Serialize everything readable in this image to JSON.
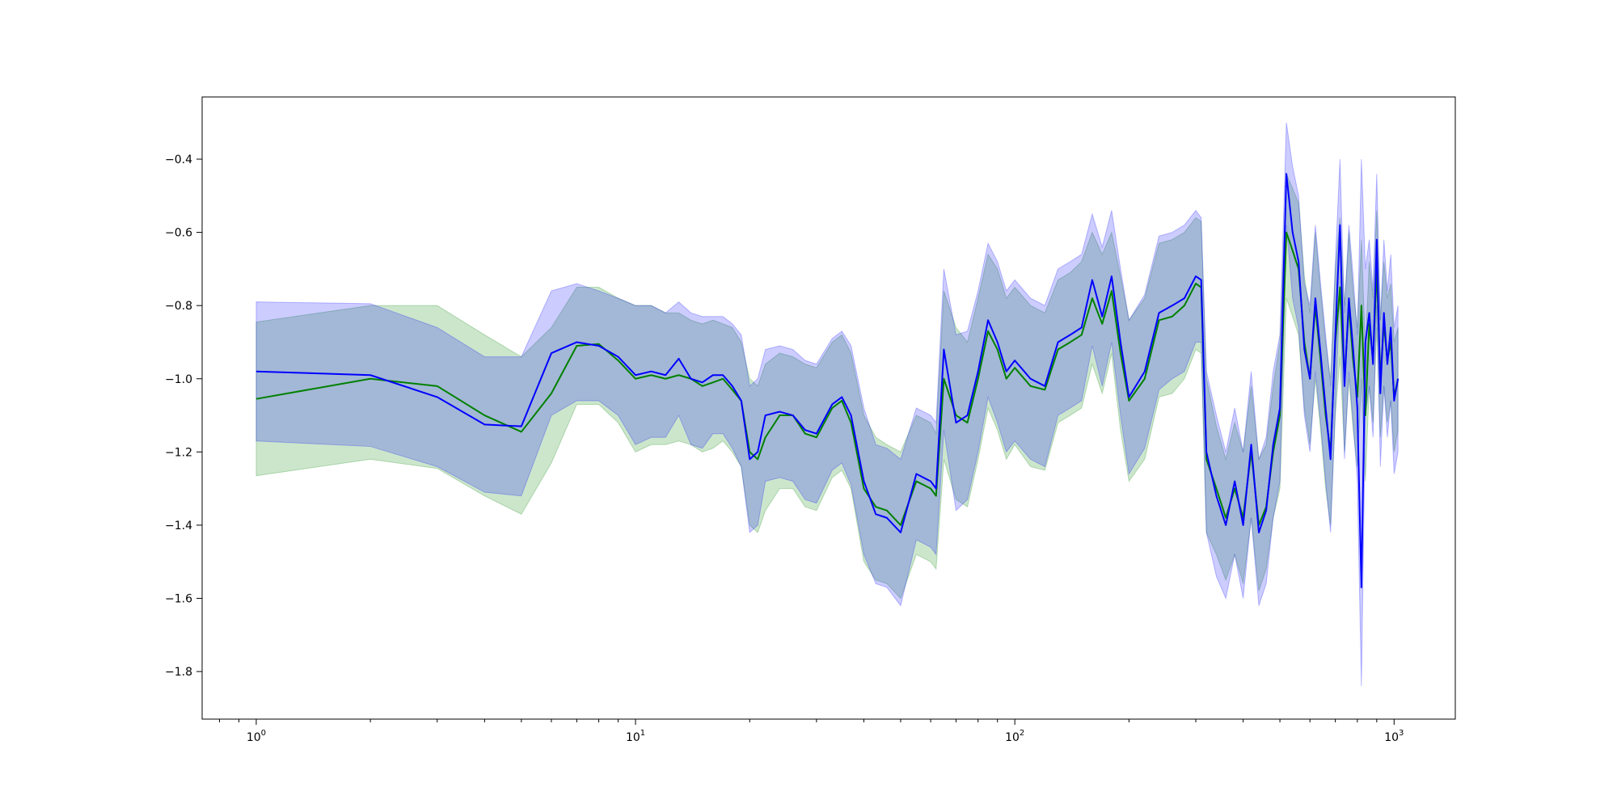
{
  "chart_data": {
    "type": "line",
    "xscale": "log",
    "xlim": [
      0.72,
      1450
    ],
    "ylim": [
      -1.93,
      -0.23
    ],
    "grid": false,
    "legend": "none",
    "colors": {
      "green_line": "#008000",
      "green_band": "#008000",
      "blue_line": "#0000ff",
      "blue_band": "#0000ff",
      "axes": "#000000"
    },
    "x_ticks": [
      {
        "value": 1,
        "base": "10",
        "exp": "0"
      },
      {
        "value": 10,
        "base": "10",
        "exp": "1"
      },
      {
        "value": 100,
        "base": "10",
        "exp": "2"
      },
      {
        "value": 1000,
        "base": "10",
        "exp": "3"
      }
    ],
    "y_ticks": [
      {
        "value": -0.4,
        "label": "−0.4"
      },
      {
        "value": -0.6,
        "label": "−0.6"
      },
      {
        "value": -0.8,
        "label": "−0.8"
      },
      {
        "value": -1.0,
        "label": "−1.0"
      },
      {
        "value": -1.2,
        "label": "−1.2"
      },
      {
        "value": -1.4,
        "label": "−1.4"
      },
      {
        "value": -1.6,
        "label": "−1.6"
      },
      {
        "value": -1.8,
        "label": "−1.8"
      }
    ],
    "series": [
      {
        "color_key": "green",
        "x": [
          1,
          2,
          3,
          4,
          5,
          6,
          7,
          8,
          9,
          10,
          11,
          12,
          13,
          14,
          15,
          16,
          17,
          18,
          19,
          20,
          21,
          22,
          24,
          26,
          28,
          30,
          33,
          35,
          37,
          40,
          43,
          46,
          50,
          55,
          60,
          62,
          65,
          70,
          75,
          80,
          85,
          90,
          95,
          100,
          110,
          120,
          130,
          140,
          150,
          160,
          170,
          180,
          190,
          200,
          220,
          240,
          260,
          280,
          300,
          310,
          320,
          340,
          360,
          380,
          400,
          420,
          440,
          460,
          480,
          500,
          520,
          540,
          560,
          580,
          600,
          620,
          640,
          660,
          680,
          700,
          720,
          740,
          760,
          780,
          800,
          820,
          840,
          860,
          880,
          900,
          920,
          940,
          960,
          980,
          1000,
          1024
        ],
        "y": [
          -1.055,
          -1.0,
          -1.02,
          -1.1,
          -1.145,
          -1.04,
          -0.91,
          -0.905,
          -0.95,
          -1.0,
          -0.99,
          -1.0,
          -0.99,
          -1.0,
          -1.02,
          -1.01,
          -1.0,
          -1.03,
          -1.06,
          -1.2,
          -1.22,
          -1.16,
          -1.1,
          -1.1,
          -1.15,
          -1.16,
          -1.08,
          -1.06,
          -1.12,
          -1.3,
          -1.35,
          -1.36,
          -1.4,
          -1.28,
          -1.3,
          -1.32,
          -1.0,
          -1.1,
          -1.12,
          -1.0,
          -0.87,
          -0.92,
          -1.0,
          -0.97,
          -1.02,
          -1.03,
          -0.92,
          -0.9,
          -0.88,
          -0.78,
          -0.85,
          -0.76,
          -0.93,
          -1.06,
          -1.0,
          -0.84,
          -0.83,
          -0.8,
          -0.74,
          -0.75,
          -1.22,
          -1.3,
          -1.38,
          -1.3,
          -1.38,
          -1.2,
          -1.4,
          -1.35,
          -1.2,
          -1.1,
          -0.6,
          -0.65,
          -0.7,
          -0.9,
          -1.0,
          -0.8,
          -0.95,
          -1.1,
          -1.2,
          -0.9,
          -0.75,
          -1.0,
          -0.8,
          -0.95,
          -1.05,
          -0.8,
          -1.1,
          -0.85,
          -0.95,
          -0.7,
          -1.0,
          -0.85,
          -0.95,
          -0.9,
          -1.05,
          -1.0
        ],
        "upper": [
          -0.845,
          -0.8,
          -0.8,
          -0.88,
          -0.94,
          -0.86,
          -0.75,
          -0.75,
          -0.78,
          -0.8,
          -0.8,
          -0.82,
          -0.82,
          -0.84,
          -0.85,
          -0.84,
          -0.85,
          -0.86,
          -0.9,
          -1.0,
          -1.02,
          -0.96,
          -0.93,
          -0.94,
          -0.96,
          -0.97,
          -0.9,
          -0.88,
          -0.93,
          -1.1,
          -1.16,
          -1.18,
          -1.2,
          -1.1,
          -1.12,
          -1.15,
          -0.76,
          -0.86,
          -0.9,
          -0.78,
          -0.66,
          -0.7,
          -0.78,
          -0.75,
          -0.8,
          -0.82,
          -0.73,
          -0.71,
          -0.68,
          -0.6,
          -0.66,
          -0.6,
          -0.72,
          -0.84,
          -0.78,
          -0.63,
          -0.62,
          -0.6,
          -0.56,
          -0.57,
          -1.0,
          -1.13,
          -1.22,
          -1.12,
          -1.2,
          -1.02,
          -1.22,
          -1.18,
          -1.02,
          -0.9,
          -0.44,
          -0.48,
          -0.52,
          -0.72,
          -0.82,
          -0.6,
          -0.76,
          -0.9,
          -1.0,
          -0.7,
          -0.56,
          -0.8,
          -0.6,
          -0.76,
          -0.86,
          -0.62,
          -0.92,
          -0.68,
          -0.78,
          -0.54,
          -0.84,
          -0.68,
          -0.78,
          -0.74,
          -0.9,
          -0.86
        ],
        "lower": [
          -1.265,
          -1.22,
          -1.245,
          -1.32,
          -1.37,
          -1.23,
          -1.07,
          -1.07,
          -1.12,
          -1.2,
          -1.18,
          -1.18,
          -1.17,
          -1.18,
          -1.2,
          -1.19,
          -1.17,
          -1.2,
          -1.24,
          -1.4,
          -1.42,
          -1.36,
          -1.3,
          -1.3,
          -1.35,
          -1.36,
          -1.27,
          -1.25,
          -1.3,
          -1.5,
          -1.55,
          -1.56,
          -1.6,
          -1.48,
          -1.5,
          -1.52,
          -1.22,
          -1.33,
          -1.35,
          -1.22,
          -1.08,
          -1.14,
          -1.22,
          -1.18,
          -1.24,
          -1.25,
          -1.12,
          -1.1,
          -1.08,
          -0.96,
          -1.04,
          -0.93,
          -1.14,
          -1.28,
          -1.22,
          -1.05,
          -1.04,
          -1.0,
          -0.92,
          -0.93,
          -1.42,
          -1.48,
          -1.55,
          -1.48,
          -1.56,
          -1.38,
          -1.58,
          -1.52,
          -1.38,
          -1.3,
          -0.78,
          -0.83,
          -0.88,
          -1.08,
          -1.18,
          -1.0,
          -1.14,
          -1.3,
          -1.4,
          -1.1,
          -0.94,
          -1.2,
          -1.0,
          -1.14,
          -1.24,
          -1.0,
          -1.28,
          -1.02,
          -1.12,
          -0.86,
          -1.16,
          -1.02,
          -1.12,
          -1.06,
          -1.2,
          -1.14
        ]
      },
      {
        "color_key": "blue",
        "x": [
          1,
          2,
          3,
          4,
          5,
          6,
          7,
          8,
          9,
          10,
          11,
          12,
          13,
          14,
          15,
          16,
          17,
          18,
          19,
          20,
          21,
          22,
          24,
          26,
          28,
          30,
          33,
          35,
          37,
          40,
          43,
          46,
          50,
          55,
          60,
          62,
          65,
          70,
          75,
          80,
          85,
          90,
          95,
          100,
          110,
          120,
          130,
          140,
          150,
          160,
          170,
          180,
          190,
          200,
          220,
          240,
          260,
          280,
          300,
          310,
          320,
          340,
          360,
          380,
          400,
          420,
          440,
          460,
          480,
          500,
          520,
          540,
          560,
          580,
          600,
          620,
          640,
          660,
          680,
          700,
          720,
          740,
          760,
          780,
          800,
          820,
          840,
          860,
          880,
          900,
          920,
          940,
          960,
          980,
          1000,
          1024
        ],
        "y": [
          -0.98,
          -0.99,
          -1.05,
          -1.125,
          -1.13,
          -0.93,
          -0.9,
          -0.91,
          -0.94,
          -0.99,
          -0.98,
          -0.99,
          -0.945,
          -1.0,
          -1.01,
          -0.99,
          -0.99,
          -1.02,
          -1.06,
          -1.22,
          -1.2,
          -1.1,
          -1.09,
          -1.1,
          -1.14,
          -1.15,
          -1.07,
          -1.05,
          -1.1,
          -1.28,
          -1.37,
          -1.38,
          -1.42,
          -1.26,
          -1.28,
          -1.3,
          -0.92,
          -1.12,
          -1.1,
          -0.98,
          -0.84,
          -0.9,
          -0.98,
          -0.95,
          -1.0,
          -1.02,
          -0.9,
          -0.88,
          -0.86,
          -0.73,
          -0.83,
          -0.72,
          -0.9,
          -1.05,
          -0.98,
          -0.82,
          -0.8,
          -0.78,
          -0.72,
          -0.73,
          -1.2,
          -1.32,
          -1.4,
          -1.28,
          -1.4,
          -1.18,
          -1.42,
          -1.36,
          -1.18,
          -1.08,
          -0.44,
          -0.6,
          -0.68,
          -0.92,
          -1.0,
          -0.78,
          -0.93,
          -1.08,
          -1.22,
          -0.88,
          -0.58,
          -1.02,
          -0.78,
          -0.92,
          -1.08,
          -1.57,
          -0.9,
          -0.82,
          -0.96,
          -0.62,
          -1.04,
          -0.82,
          -0.96,
          -0.86,
          -1.06,
          -1.0
        ],
        "upper": [
          -0.79,
          -0.795,
          -0.86,
          -0.94,
          -0.94,
          -0.76,
          -0.74,
          -0.76,
          -0.78,
          -0.8,
          -0.8,
          -0.82,
          -0.79,
          -0.82,
          -0.83,
          -0.83,
          -0.83,
          -0.85,
          -0.88,
          -1.02,
          -1.0,
          -0.92,
          -0.91,
          -0.92,
          -0.95,
          -0.96,
          -0.89,
          -0.87,
          -0.91,
          -1.08,
          -1.18,
          -1.19,
          -1.22,
          -1.08,
          -1.1,
          -1.12,
          -0.7,
          -0.88,
          -0.87,
          -0.76,
          -0.63,
          -0.68,
          -0.76,
          -0.73,
          -0.78,
          -0.8,
          -0.7,
          -0.68,
          -0.66,
          -0.55,
          -0.64,
          -0.54,
          -0.7,
          -0.84,
          -0.77,
          -0.61,
          -0.6,
          -0.58,
          -0.54,
          -0.56,
          -0.98,
          -1.1,
          -1.2,
          -1.08,
          -1.2,
          -0.98,
          -1.22,
          -1.16,
          -0.98,
          -0.88,
          -0.3,
          -0.42,
          -0.5,
          -0.74,
          -0.8,
          -0.58,
          -0.74,
          -0.88,
          -1.02,
          -0.68,
          -0.4,
          -0.82,
          -0.58,
          -0.72,
          -0.88,
          -0.4,
          -0.7,
          -0.62,
          -0.76,
          -0.44,
          -0.84,
          -0.62,
          -0.76,
          -0.66,
          -0.86,
          -0.8
        ],
        "lower": [
          -1.17,
          -1.185,
          -1.24,
          -1.31,
          -1.32,
          -1.1,
          -1.06,
          -1.06,
          -1.1,
          -1.18,
          -1.16,
          -1.16,
          -1.1,
          -1.18,
          -1.19,
          -1.15,
          -1.15,
          -1.19,
          -1.24,
          -1.42,
          -1.4,
          -1.28,
          -1.27,
          -1.28,
          -1.33,
          -1.34,
          -1.25,
          -1.23,
          -1.29,
          -1.48,
          -1.56,
          -1.57,
          -1.62,
          -1.44,
          -1.46,
          -1.48,
          -1.14,
          -1.36,
          -1.33,
          -1.2,
          -1.05,
          -1.12,
          -1.2,
          -1.17,
          -1.22,
          -1.24,
          -1.1,
          -1.08,
          -1.06,
          -0.91,
          -1.02,
          -0.9,
          -1.1,
          -1.26,
          -1.19,
          -1.03,
          -1.0,
          -0.98,
          -0.9,
          -0.9,
          -1.42,
          -1.54,
          -1.6,
          -1.48,
          -1.6,
          -1.38,
          -1.62,
          -1.56,
          -1.38,
          -1.28,
          -0.58,
          -0.78,
          -0.86,
          -1.1,
          -1.2,
          -0.98,
          -1.12,
          -1.28,
          -1.42,
          -1.08,
          -0.76,
          -1.22,
          -0.98,
          -1.12,
          -1.28,
          -1.84,
          -1.1,
          -1.02,
          -1.16,
          -0.8,
          -1.24,
          -1.02,
          -1.16,
          -1.06,
          -1.26,
          -1.2
        ]
      }
    ]
  }
}
